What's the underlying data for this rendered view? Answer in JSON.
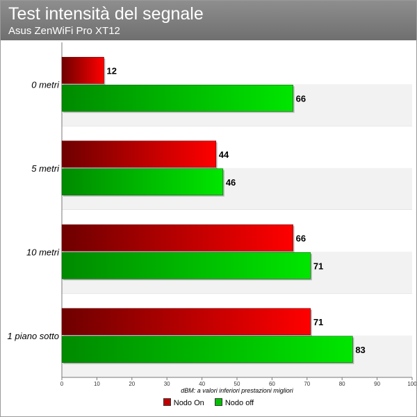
{
  "chart_data": {
    "type": "bar",
    "orientation": "horizontal",
    "title": "Test intensità del segnale",
    "subtitle": "Asus ZenWiFi Pro XT12",
    "categories": [
      "0 metri",
      "5 metri",
      "10 metri",
      "1 piano sotto"
    ],
    "series": [
      {
        "name": "Nodo On",
        "values": [
          12,
          44,
          66,
          71
        ],
        "color": "#e80000",
        "color_dark": "#6e0000"
      },
      {
        "name": "Nodo off",
        "values": [
          66,
          46,
          71,
          83
        ],
        "color": "#00d400",
        "color_dark": "#008a00"
      }
    ],
    "xlim": [
      0,
      100
    ],
    "xticks": [
      0,
      10,
      20,
      30,
      40,
      50,
      60,
      70,
      80,
      90,
      100
    ],
    "xlabel": "dBM: a valori inferiori prestazioni migliori",
    "legend_position": "bottom",
    "grid": false
  }
}
